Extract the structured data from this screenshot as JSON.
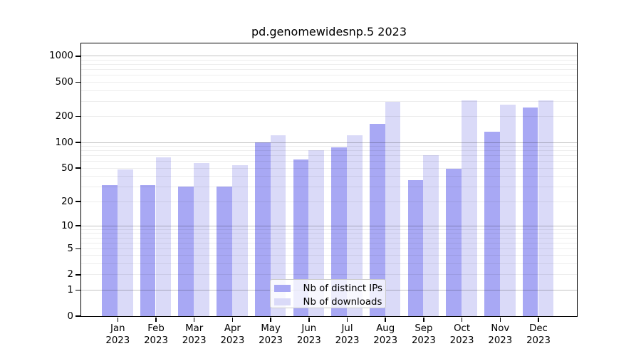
{
  "chart_data": {
    "type": "bar",
    "title": "pd.genomewidesnp.5 2023",
    "year_label": "2023",
    "months": [
      "Jan",
      "Feb",
      "Mar",
      "Apr",
      "May",
      "Jun",
      "Jul",
      "Aug",
      "Sep",
      "Oct",
      "Nov",
      "Dec"
    ],
    "series": [
      {
        "name": "Nb of distinct IPs",
        "color": "#a8a8f4",
        "values": [
          31,
          31,
          30,
          30,
          100,
          62,
          86,
          164,
          36,
          49,
          131,
          250
        ]
      },
      {
        "name": "Nb of downloads",
        "color": "#dadaf8",
        "values": [
          48,
          66,
          57,
          54,
          120,
          80,
          121,
          295,
          70,
          302,
          274,
          303
        ]
      }
    ],
    "xlabel": "",
    "ylabel": "",
    "y_scale": "log1p",
    "y_ticks": [
      1000,
      500,
      200,
      100,
      50,
      20,
      10,
      5,
      2,
      1,
      0
    ],
    "ylim": [
      0,
      1400
    ],
    "grid": "on",
    "grid_major": [
      1,
      10,
      100,
      1000
    ],
    "grid_minor_bases": [
      1,
      10,
      100
    ],
    "legend_position": "bottom-center",
    "colors": {
      "spine": "#000000",
      "grid_major": "#c4c4c4",
      "grid_minor": "#ededed",
      "text": "#000000"
    }
  }
}
